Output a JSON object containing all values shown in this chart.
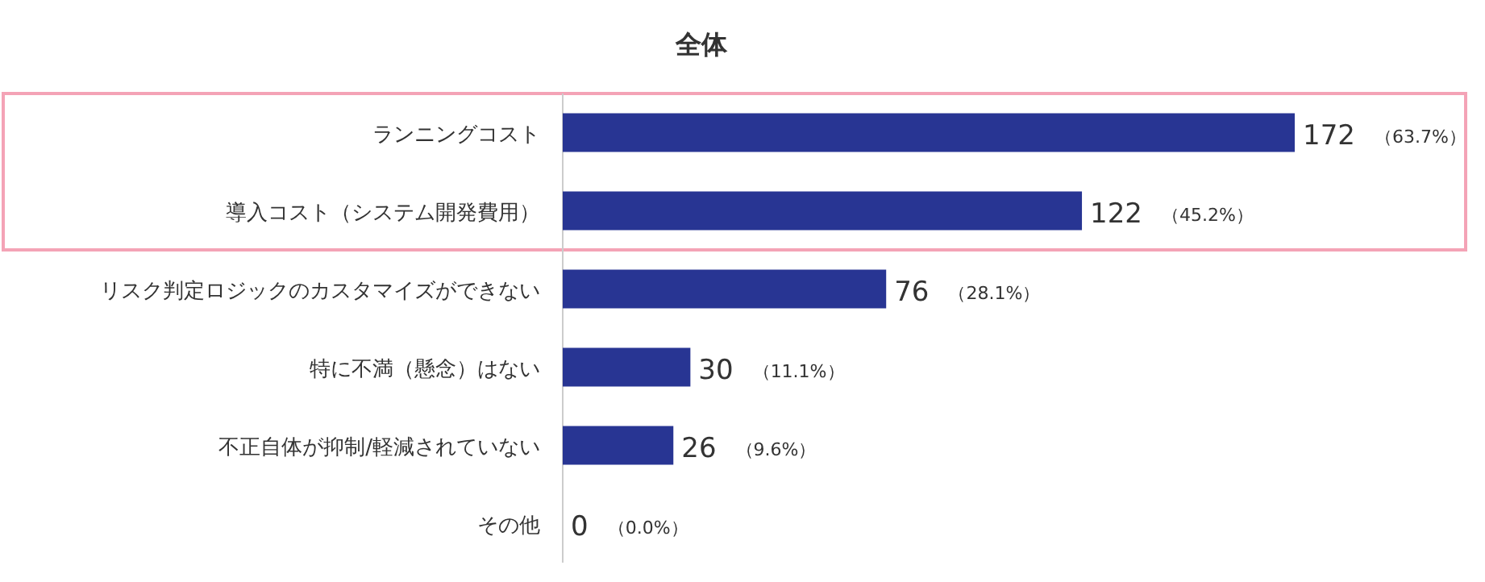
{
  "chart_data": {
    "type": "bar",
    "orientation": "horizontal",
    "title": "全体",
    "categories": [
      "ランニングコスト",
      "導入コスト（システム開発費用）",
      "リスク判定ロジックのカスタマイズができない",
      "特に不満（懸念）はない",
      "不正自体が抑制/軽減されていない",
      "その他"
    ],
    "values": [
      172,
      122,
      76,
      30,
      26,
      0
    ],
    "data_labels": true,
    "annotations": [
      "（63.7%）",
      "（45.2%）",
      "（28.1%）",
      "（11.1%）",
      "（9.6%）",
      "（0.0%）"
    ],
    "color": "#283593"
  }
}
